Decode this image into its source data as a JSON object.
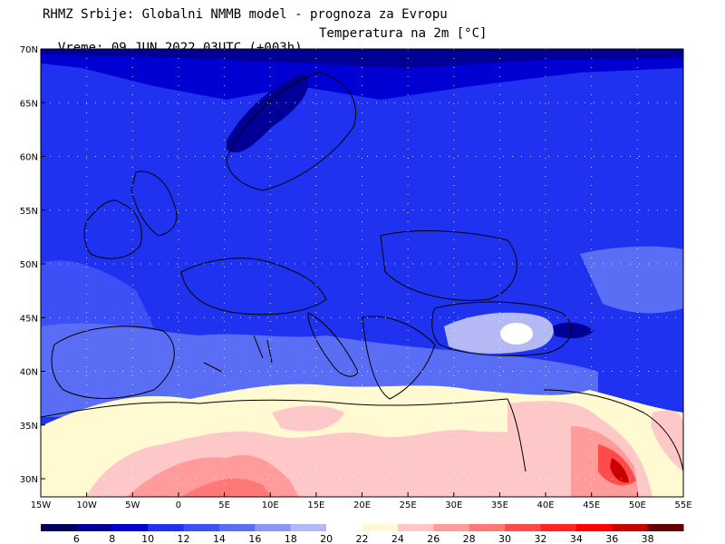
{
  "header": {
    "line1": "RHMZ Srbije: Globalni NMMB model - prognoza za Evropu",
    "line2_time": "Vreme: 09 JUN 2022 03UTC (+003h)",
    "line2_param": "Temperatura na 2m [°C]"
  },
  "map": {
    "lat_labels": [
      "70N",
      "65N",
      "60N",
      "55N",
      "50N",
      "45N",
      "40N",
      "35N",
      "30N"
    ],
    "lon_labels": [
      "15W",
      "10W",
      "5W",
      "0",
      "5E",
      "10E",
      "15E",
      "20E",
      "25E",
      "30E",
      "35E",
      "40E",
      "45E",
      "50E",
      "55E"
    ]
  },
  "colorbar": {
    "labels": [
      "6",
      "8",
      "10",
      "12",
      "14",
      "16",
      "18",
      "20",
      "22",
      "24",
      "26",
      "28",
      "30",
      "32",
      "34",
      "36",
      "38"
    ],
    "colors": [
      "#00005a",
      "#000096",
      "#0000d2",
      "#1e32f0",
      "#3c50f5",
      "#5a6ef5",
      "#8c96f5",
      "#b4b9f5",
      "#ffffff",
      "#fffad2",
      "#ffc8c8",
      "#ff9b9b",
      "#ff7878",
      "#ff4b4b",
      "#ff2323",
      "#ff0000",
      "#c80000",
      "#640000"
    ]
  }
}
